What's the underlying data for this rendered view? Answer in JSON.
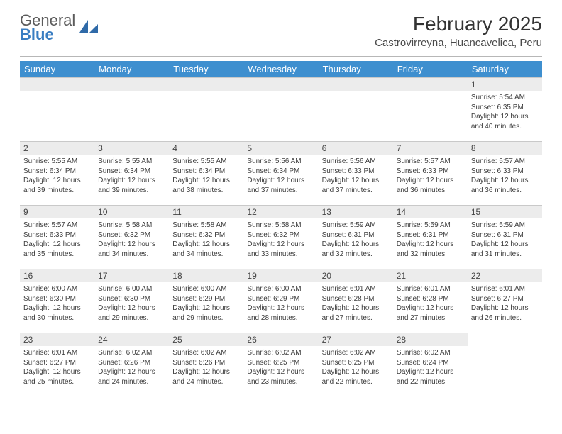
{
  "brand": {
    "top": "General",
    "bottom": "Blue"
  },
  "title": "February 2025",
  "location": "Castrovirreyna, Huancavelica, Peru",
  "colors": {
    "header_bg": "#3e8fcf",
    "header_text": "#ffffff",
    "daynum_bg": "#ececec",
    "rule": "#b7b7b7",
    "brand_blue": "#3a7ec2",
    "text": "#3c3c3c"
  },
  "weekdays": [
    "Sunday",
    "Monday",
    "Tuesday",
    "Wednesday",
    "Thursday",
    "Friday",
    "Saturday"
  ],
  "first_weekday_index": 6,
  "days": [
    {
      "n": 1,
      "sunrise": "5:54 AM",
      "sunset": "6:35 PM",
      "daylight": "12 hours and 40 minutes."
    },
    {
      "n": 2,
      "sunrise": "5:55 AM",
      "sunset": "6:34 PM",
      "daylight": "12 hours and 39 minutes."
    },
    {
      "n": 3,
      "sunrise": "5:55 AM",
      "sunset": "6:34 PM",
      "daylight": "12 hours and 39 minutes."
    },
    {
      "n": 4,
      "sunrise": "5:55 AM",
      "sunset": "6:34 PM",
      "daylight": "12 hours and 38 minutes."
    },
    {
      "n": 5,
      "sunrise": "5:56 AM",
      "sunset": "6:34 PM",
      "daylight": "12 hours and 37 minutes."
    },
    {
      "n": 6,
      "sunrise": "5:56 AM",
      "sunset": "6:33 PM",
      "daylight": "12 hours and 37 minutes."
    },
    {
      "n": 7,
      "sunrise": "5:57 AM",
      "sunset": "6:33 PM",
      "daylight": "12 hours and 36 minutes."
    },
    {
      "n": 8,
      "sunrise": "5:57 AM",
      "sunset": "6:33 PM",
      "daylight": "12 hours and 36 minutes."
    },
    {
      "n": 9,
      "sunrise": "5:57 AM",
      "sunset": "6:33 PM",
      "daylight": "12 hours and 35 minutes."
    },
    {
      "n": 10,
      "sunrise": "5:58 AM",
      "sunset": "6:32 PM",
      "daylight": "12 hours and 34 minutes."
    },
    {
      "n": 11,
      "sunrise": "5:58 AM",
      "sunset": "6:32 PM",
      "daylight": "12 hours and 34 minutes."
    },
    {
      "n": 12,
      "sunrise": "5:58 AM",
      "sunset": "6:32 PM",
      "daylight": "12 hours and 33 minutes."
    },
    {
      "n": 13,
      "sunrise": "5:59 AM",
      "sunset": "6:31 PM",
      "daylight": "12 hours and 32 minutes."
    },
    {
      "n": 14,
      "sunrise": "5:59 AM",
      "sunset": "6:31 PM",
      "daylight": "12 hours and 32 minutes."
    },
    {
      "n": 15,
      "sunrise": "5:59 AM",
      "sunset": "6:31 PM",
      "daylight": "12 hours and 31 minutes."
    },
    {
      "n": 16,
      "sunrise": "6:00 AM",
      "sunset": "6:30 PM",
      "daylight": "12 hours and 30 minutes."
    },
    {
      "n": 17,
      "sunrise": "6:00 AM",
      "sunset": "6:30 PM",
      "daylight": "12 hours and 29 minutes."
    },
    {
      "n": 18,
      "sunrise": "6:00 AM",
      "sunset": "6:29 PM",
      "daylight": "12 hours and 29 minutes."
    },
    {
      "n": 19,
      "sunrise": "6:00 AM",
      "sunset": "6:29 PM",
      "daylight": "12 hours and 28 minutes."
    },
    {
      "n": 20,
      "sunrise": "6:01 AM",
      "sunset": "6:28 PM",
      "daylight": "12 hours and 27 minutes."
    },
    {
      "n": 21,
      "sunrise": "6:01 AM",
      "sunset": "6:28 PM",
      "daylight": "12 hours and 27 minutes."
    },
    {
      "n": 22,
      "sunrise": "6:01 AM",
      "sunset": "6:27 PM",
      "daylight": "12 hours and 26 minutes."
    },
    {
      "n": 23,
      "sunrise": "6:01 AM",
      "sunset": "6:27 PM",
      "daylight": "12 hours and 25 minutes."
    },
    {
      "n": 24,
      "sunrise": "6:02 AM",
      "sunset": "6:26 PM",
      "daylight": "12 hours and 24 minutes."
    },
    {
      "n": 25,
      "sunrise": "6:02 AM",
      "sunset": "6:26 PM",
      "daylight": "12 hours and 24 minutes."
    },
    {
      "n": 26,
      "sunrise": "6:02 AM",
      "sunset": "6:25 PM",
      "daylight": "12 hours and 23 minutes."
    },
    {
      "n": 27,
      "sunrise": "6:02 AM",
      "sunset": "6:25 PM",
      "daylight": "12 hours and 22 minutes."
    },
    {
      "n": 28,
      "sunrise": "6:02 AM",
      "sunset": "6:24 PM",
      "daylight": "12 hours and 22 minutes."
    }
  ],
  "labels": {
    "sunrise": "Sunrise:",
    "sunset": "Sunset:",
    "daylight": "Daylight:"
  }
}
